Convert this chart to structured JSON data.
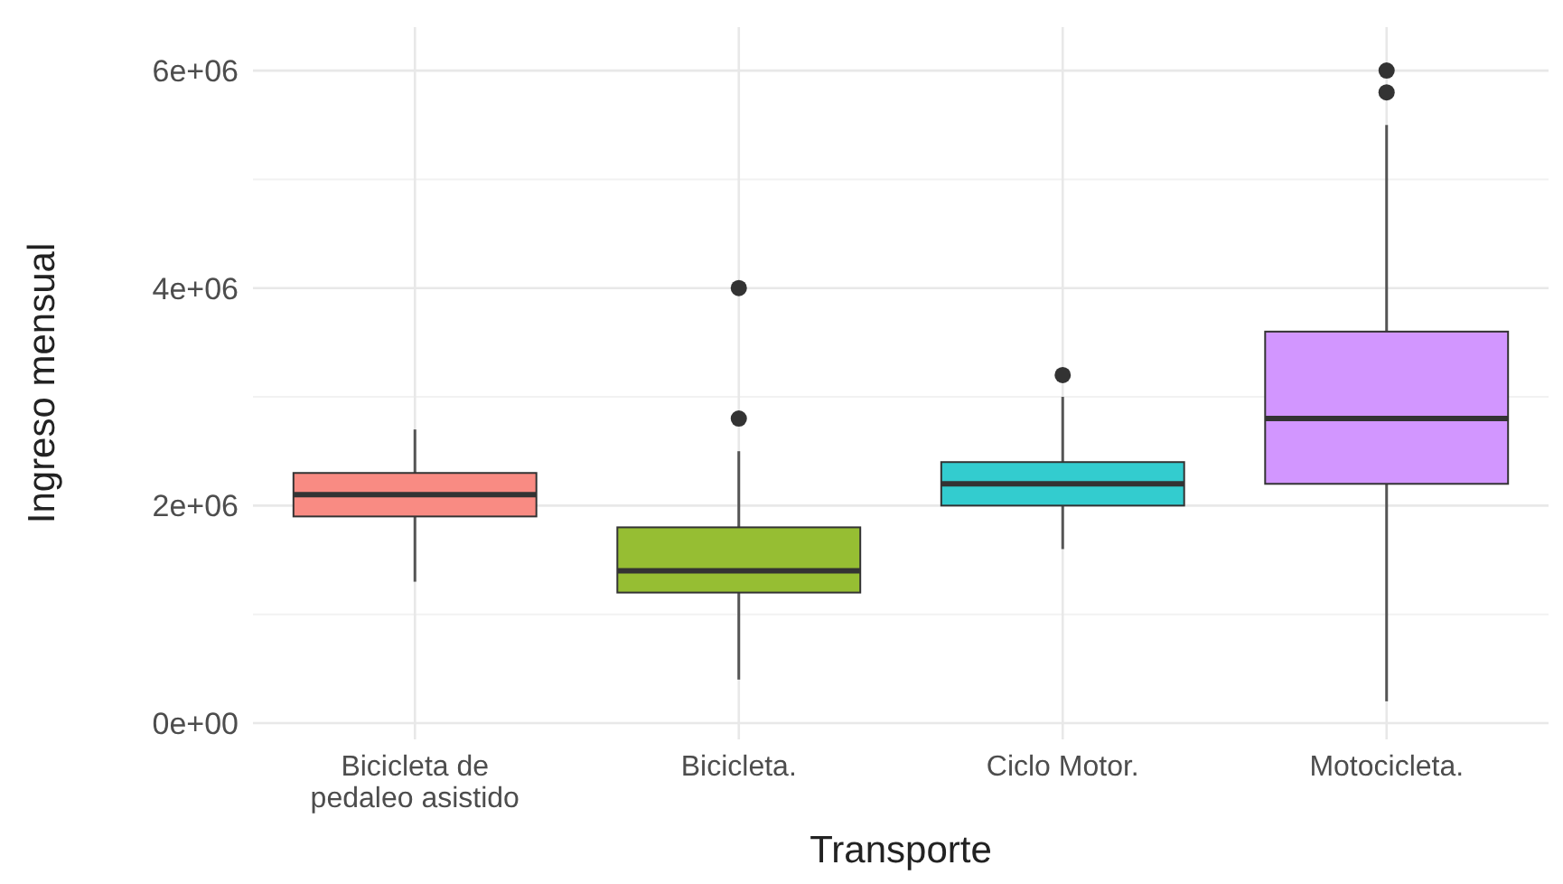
{
  "chart_data": {
    "type": "box",
    "xlabel": "Transporte",
    "ylabel": "Ingreso mensual",
    "categories": [
      "Bicicleta de pedaleo asistido",
      "Bicicleta.",
      "Ciclo Motor.",
      "Motocicleta."
    ],
    "colors": [
      "#f98b83",
      "#96be33",
      "#33cccf",
      "#d296ff"
    ],
    "boxes": [
      {
        "low": 1300000,
        "q1": 1900000,
        "median": 2100000,
        "q3": 2300000,
        "high": 2700000
      },
      {
        "low": 400000,
        "q1": 1200000,
        "median": 1400000,
        "q3": 1800000,
        "high": 2500000,
        "outliers": [
          2800000,
          4000000
        ]
      },
      {
        "low": 1600000,
        "q1": 2000000,
        "median": 2200000,
        "q3": 2400000,
        "high": 3000000,
        "outliers": [
          3200000
        ]
      },
      {
        "low": 200000,
        "q1": 2200000,
        "median": 2800000,
        "q3": 3600000,
        "high": 5500000,
        "outliers": [
          5800000,
          6000000
        ]
      }
    ],
    "ylim": [
      -150000,
      6400000
    ],
    "yticks": [
      {
        "value": 0,
        "label": "0e+00"
      },
      {
        "value": 2000000,
        "label": "2e+06"
      },
      {
        "value": 4000000,
        "label": "4e+06"
      },
      {
        "value": 6000000,
        "label": "6e+06"
      }
    ],
    "grid": true
  }
}
